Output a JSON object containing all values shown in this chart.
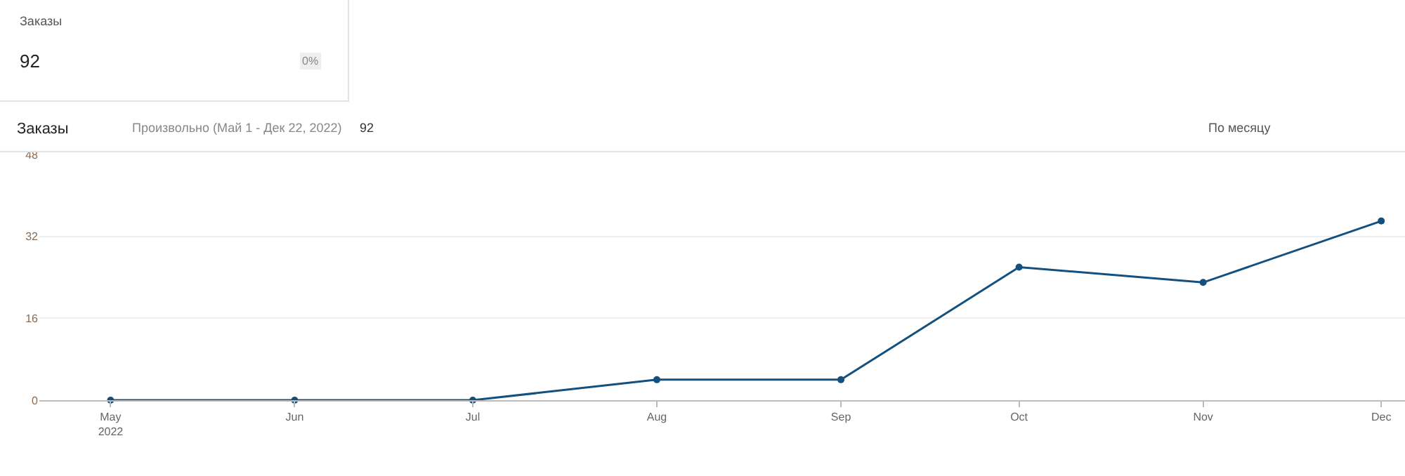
{
  "chart_data": {
    "type": "line",
    "title": "Заказы",
    "annotations": [
      "Заказы",
      "92",
      "0%",
      "Произвольно (Май 1 - Дек 22, 2022)",
      "92",
      "По месяцу"
    ],
    "x": [
      "2022-05",
      "2022-06",
      "2022-07",
      "2022-08",
      "2022-09",
      "2022-10",
      "2022-11",
      "2022-12"
    ],
    "series": [
      {
        "color": "#14507e",
        "values": [
          0,
          0,
          0,
          4,
          4,
          26,
          23,
          35
        ]
      }
    ],
    "xlim": [
      "2022-04-19",
      "2022-12-05"
    ],
    "xticks": [
      {
        "value": "2022-05",
        "label": "May\n2022"
      },
      {
        "value": "2022-06",
        "label": "Jun"
      },
      {
        "value": "2022-07",
        "label": "Jul"
      },
      {
        "value": "2022-08",
        "label": "Aug"
      },
      {
        "value": "2022-09",
        "label": "Sep"
      },
      {
        "value": "2022-10",
        "label": "Oct"
      },
      {
        "value": "2022-11",
        "label": "Nov"
      },
      {
        "value": "2022-12",
        "label": "Dec"
      }
    ],
    "ylim": [
      0,
      48
    ],
    "yticks": [
      0,
      16,
      32,
      48
    ],
    "grid": "y",
    "marker": "circle",
    "line_style": "solid"
  }
}
